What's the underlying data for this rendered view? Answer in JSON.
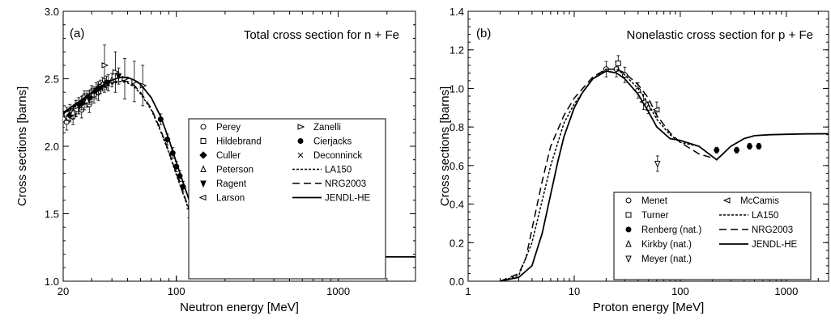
{
  "chart_data": [
    {
      "type": "line",
      "panel_label": "(a)",
      "title": "Total cross section for n + Fe",
      "xlabel": "Neutron energy [MeV]",
      "ylabel": "Cross sections [barns]",
      "x_scale": "log",
      "xlim": [
        20,
        3000
      ],
      "ylim": [
        1.0,
        3.0
      ],
      "x_ticks": [
        {
          "v": 20,
          "label": "20"
        },
        {
          "v": 100,
          "label": "100"
        },
        {
          "v": 1000,
          "label": "1000"
        }
      ],
      "y_ticks": [
        {
          "v": 1.0,
          "label": "1.0"
        },
        {
          "v": 1.5,
          "label": "1.5"
        },
        {
          "v": 2.0,
          "label": "2.0"
        },
        {
          "v": 2.5,
          "label": "2.5"
        },
        {
          "v": 3.0,
          "label": "3.0"
        }
      ],
      "legend_position": "right",
      "legend": [
        {
          "name": "Perey",
          "marker": "circle-open"
        },
        {
          "name": "Zanelli",
          "marker": "triangle-right"
        },
        {
          "name": "Hildebrand",
          "marker": "square-open"
        },
        {
          "name": "Cierjacks",
          "marker": "circle-filled"
        },
        {
          "name": "Culler",
          "marker": "diamond-filled"
        },
        {
          "name": "Deconninck",
          "marker": "cross"
        },
        {
          "name": "Peterson",
          "marker": "triangle-up-open"
        },
        {
          "name": "LA150",
          "line": "dotted"
        },
        {
          "name": "Ragent",
          "marker": "triangle-down-filled"
        },
        {
          "name": "NRG2003",
          "line": "dashed"
        },
        {
          "name": "Larson",
          "marker": "triangle-left"
        },
        {
          "name": "JENDL-HE",
          "line": "solid"
        }
      ],
      "series": [
        {
          "name": "JENDL-HE",
          "style": "solid",
          "x": [
            20,
            25,
            30,
            35,
            40,
            45,
            50,
            55,
            60,
            70,
            80,
            90,
            100,
            120,
            150,
            200,
            250,
            350,
            500,
            700,
            1000,
            1500,
            2000,
            3000
          ],
          "y": [
            2.25,
            2.33,
            2.4,
            2.45,
            2.49,
            2.51,
            2.51,
            2.49,
            2.46,
            2.36,
            2.22,
            2.05,
            1.88,
            1.6,
            1.33,
            1.14,
            1.1,
            1.07,
            1.11,
            1.15,
            1.17,
            1.18,
            1.18,
            1.18
          ]
        },
        {
          "name": "NRG2003",
          "style": "dashed",
          "x": [
            20,
            25,
            30,
            35,
            40,
            45,
            50,
            55,
            60,
            70,
            80,
            90,
            100,
            120,
            150
          ],
          "y": [
            2.24,
            2.32,
            2.39,
            2.44,
            2.47,
            2.49,
            2.48,
            2.45,
            2.4,
            2.28,
            2.12,
            1.96,
            1.8,
            1.53,
            1.3
          ]
        },
        {
          "name": "LA150",
          "style": "dotted",
          "x": [
            20,
            25,
            30,
            35,
            40,
            45,
            50,
            55,
            60,
            70,
            80,
            90,
            100,
            120,
            150
          ],
          "y": [
            2.24,
            2.31,
            2.38,
            2.43,
            2.46,
            2.48,
            2.47,
            2.44,
            2.39,
            2.27,
            2.11,
            1.95,
            1.79,
            1.52,
            1.29
          ]
        }
      ],
      "points": [
        {
          "name": "Perey",
          "x": [
            20,
            21,
            22,
            23,
            24,
            25,
            26,
            27,
            28,
            29,
            31,
            33
          ],
          "y": [
            2.2,
            2.18,
            2.25,
            2.22,
            2.28,
            2.3,
            2.27,
            2.33,
            2.35,
            2.31,
            2.38,
            2.4
          ],
          "err": 0.06
        },
        {
          "name": "Hildebrand",
          "x": [
            21,
            24,
            27,
            30,
            34
          ],
          "y": [
            2.24,
            2.29,
            2.36,
            2.4,
            2.44
          ],
          "err": 0.05
        },
        {
          "name": "Culler",
          "x": [
            22,
            26,
            29,
            33,
            37
          ],
          "y": [
            2.23,
            2.32,
            2.36,
            2.43,
            2.47
          ],
          "err": 0.05
        },
        {
          "name": "Peterson",
          "x": [
            23,
            28,
            35,
            40
          ],
          "y": [
            2.25,
            2.34,
            2.46,
            2.49
          ],
          "err": 0.05
        },
        {
          "name": "Ragent",
          "x": [
            25,
            32,
            38,
            44
          ],
          "y": [
            2.3,
            2.41,
            2.47,
            2.52
          ],
          "err": 0.06
        },
        {
          "name": "Larson",
          "x": [
            24,
            30,
            36
          ],
          "y": [
            2.27,
            2.38,
            2.45
          ],
          "err": 0.05
        },
        {
          "name": "Zanelli",
          "x": [
            36,
            42,
            48,
            55,
            62
          ],
          "y": [
            2.6,
            2.55,
            2.5,
            2.48,
            2.45
          ],
          "err": 0.15
        },
        {
          "name": "Cierjacks",
          "x": [
            80,
            88,
            95,
            100,
            105,
            110
          ],
          "y": [
            2.2,
            2.05,
            1.95,
            1.85,
            1.78,
            1.7
          ],
          "err": 0.04
        },
        {
          "name": "Deconninck",
          "x": [
            120,
            140,
            160,
            180
          ],
          "y": [
            1.55,
            1.4,
            1.32,
            1.25
          ],
          "err": 0.08
        }
      ]
    },
    {
      "type": "line",
      "panel_label": "(b)",
      "title": "Nonelastic cross section for p + Fe",
      "xlabel": "Proton energy [MeV]",
      "ylabel": "Cross sections [barns]",
      "x_scale": "log",
      "xlim": [
        1,
        2500
      ],
      "ylim": [
        0.0,
        1.4
      ],
      "x_ticks": [
        {
          "v": 1,
          "label": "1"
        },
        {
          "v": 10,
          "label": "10"
        },
        {
          "v": 100,
          "label": "100"
        },
        {
          "v": 1000,
          "label": "1000"
        }
      ],
      "y_ticks": [
        {
          "v": 0.0,
          "label": "0.0"
        },
        {
          "v": 0.2,
          "label": "0.2"
        },
        {
          "v": 0.4,
          "label": "0.4"
        },
        {
          "v": 0.6,
          "label": "0.6"
        },
        {
          "v": 0.8,
          "label": "0.8"
        },
        {
          "v": 1.0,
          "label": "1.0"
        },
        {
          "v": 1.2,
          "label": "1.2"
        },
        {
          "v": 1.4,
          "label": "1.4"
        }
      ],
      "legend_position": "bottom-right",
      "legend": [
        {
          "name": "Menet",
          "marker": "circle-open"
        },
        {
          "name": "McCamis",
          "marker": "triangle-left"
        },
        {
          "name": "Turner",
          "marker": "square-open"
        },
        {
          "name": "LA150",
          "line": "dotted"
        },
        {
          "name": "Renberg (nat.)",
          "marker": "circle-filled"
        },
        {
          "name": "NRG2003",
          "line": "dashed"
        },
        {
          "name": "Kirkby (nat.)",
          "marker": "triangle-up-open"
        },
        {
          "name": "JENDL-HE",
          "line": "solid"
        },
        {
          "name": "Meyer (nat.)",
          "marker": "triangle-down-open"
        }
      ],
      "series": [
        {
          "name": "JENDL-HE",
          "style": "solid",
          "x": [
            2,
            3,
            4,
            5,
            6,
            7,
            8,
            10,
            12,
            15,
            20,
            25,
            30,
            40,
            50,
            60,
            80,
            100,
            150,
            220,
            300,
            400,
            500,
            700,
            1000,
            1500,
            2500
          ],
          "y": [
            0.0,
            0.02,
            0.08,
            0.25,
            0.45,
            0.62,
            0.75,
            0.9,
            0.98,
            1.05,
            1.09,
            1.08,
            1.05,
            0.97,
            0.88,
            0.8,
            0.74,
            0.73,
            0.7,
            0.63,
            0.7,
            0.74,
            0.755,
            0.76,
            0.762,
            0.764,
            0.765
          ]
        },
        {
          "name": "NRG2003",
          "style": "dashed",
          "x": [
            2,
            3,
            3.5,
            4,
            5,
            6,
            8,
            10,
            15,
            20,
            25,
            30,
            40,
            50,
            60,
            80,
            100,
            150,
            200
          ],
          "y": [
            0.0,
            0.04,
            0.12,
            0.27,
            0.52,
            0.7,
            0.86,
            0.95,
            1.06,
            1.1,
            1.1,
            1.08,
            1.02,
            0.95,
            0.86,
            0.77,
            0.72,
            0.66,
            0.64
          ]
        },
        {
          "name": "LA150",
          "style": "dotted",
          "x": [
            2,
            3,
            4,
            5,
            6,
            8,
            10,
            15,
            20,
            25,
            30,
            40,
            50,
            60,
            80,
            100,
            150
          ],
          "y": [
            0.0,
            0.03,
            0.2,
            0.42,
            0.6,
            0.82,
            0.92,
            1.05,
            1.1,
            1.1,
            1.07,
            1.0,
            0.92,
            0.84,
            0.76,
            0.72,
            0.7
          ]
        }
      ],
      "points": [
        {
          "name": "Menet",
          "x": [
            20,
            25,
            30,
            40
          ],
          "y": [
            1.1,
            1.1,
            1.07,
            0.99
          ],
          "err": 0.04
        },
        {
          "name": "Turner",
          "x": [
            26
          ],
          "y": [
            1.13
          ],
          "err": 0.04
        },
        {
          "name": "McCamis",
          "x": [
            45,
            60
          ],
          "y": [
            0.93,
            0.89
          ],
          "err": 0.04
        },
        {
          "name": "Kirkby (nat.)",
          "x": [
            50
          ],
          "y": [
            0.9
          ],
          "err": 0.03
        },
        {
          "name": "Meyer (nat.)",
          "x": [
            61
          ],
          "y": [
            0.61
          ],
          "err": 0.04
        },
        {
          "name": "Renberg (nat.)",
          "x": [
            220,
            340,
            450,
            550
          ],
          "y": [
            0.68,
            0.68,
            0.7,
            0.7
          ],
          "err": 0.015
        }
      ]
    }
  ]
}
